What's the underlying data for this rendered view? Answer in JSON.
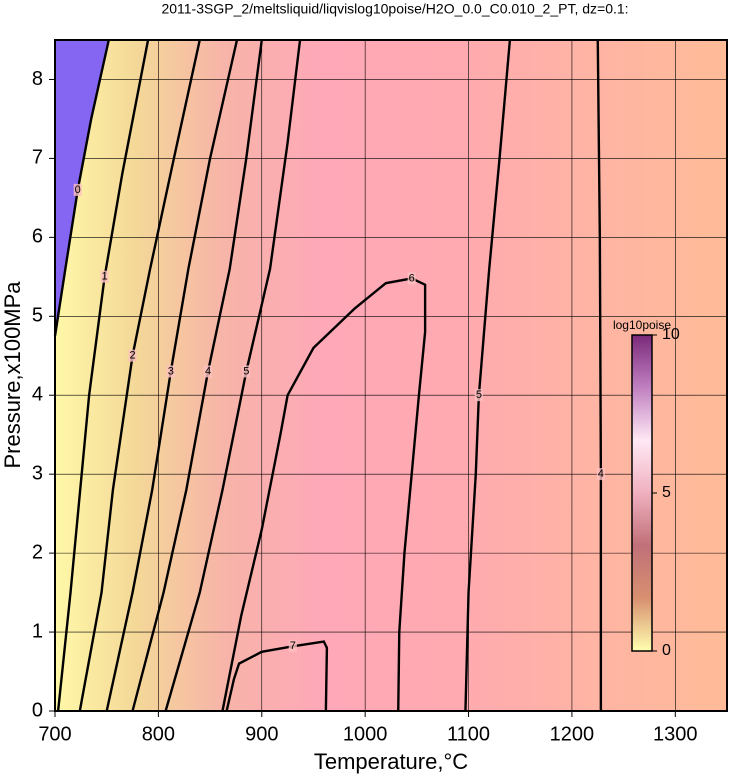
{
  "chart_data": {
    "type": "contour",
    "title": "2011-3SGP_2/meltsliquid/liqvislog10poise/H2O_0.0_C0.010_2_PT, dz=0.1:",
    "xlabel": "Temperature,°C",
    "ylabel": "Pressure,x100MPa",
    "xlim": [
      700,
      1350
    ],
    "ylim": [
      0,
      8.5
    ],
    "xticks": [
      700,
      800,
      900,
      1000,
      1100,
      1200,
      1300
    ],
    "yticks": [
      0,
      1,
      2,
      3,
      4,
      5,
      6,
      7,
      8
    ],
    "grid": true,
    "series": [
      {
        "name": "0",
        "color": "#000000",
        "fill": "#8466f2",
        "x": [
          700,
          710,
          722,
          735,
          752
        ],
        "y": [
          4.75,
          5.6,
          6.6,
          7.5,
          8.5
        ]
      },
      {
        "name": "1",
        "color": "#000000",
        "x": [
          703,
          715,
          733,
          748,
          765,
          790
        ],
        "y": [
          0,
          1.5,
          4,
          5.5,
          6.8,
          8.5
        ]
      },
      {
        "name": "2",
        "color": "#000000",
        "x": [
          724,
          745,
          756,
          775,
          792,
          815,
          840
        ],
        "y": [
          0,
          1.5,
          2.8,
          4.5,
          5.6,
          7,
          8.5
        ]
      },
      {
        "name": "3",
        "color": "#000000",
        "x": [
          750,
          775,
          794,
          812,
          829,
          850,
          876
        ],
        "y": [
          0,
          1.5,
          2.8,
          4.3,
          5.6,
          7,
          8.5
        ]
      },
      {
        "name": "4",
        "color": "#000000",
        "x": [
          775,
          805,
          827,
          848,
          869,
          885,
          900
        ],
        "y": [
          0,
          1.5,
          2.8,
          4.3,
          5.6,
          7,
          8.5
        ]
      },
      {
        "name": "5",
        "color": "#000000",
        "x": [
          807,
          840,
          862,
          885,
          908,
          925,
          937
        ],
        "y": [
          0,
          1.5,
          2.8,
          4.3,
          5.6,
          7.2,
          8.5
        ]
      },
      {
        "name": "6",
        "color": "#000000",
        "x": [
          862,
          880,
          900,
          918,
          925,
          950,
          990,
          1020,
          1045,
          1058,
          1058,
          1052,
          1045,
          1038,
          1033,
          1032
        ],
        "y": [
          0,
          1.2,
          2.3,
          3.5,
          4.0,
          4.6,
          5.1,
          5.42,
          5.48,
          5.4,
          4.8,
          4,
          3,
          2,
          1,
          0
        ]
      },
      {
        "name": "7",
        "color": "#000000",
        "x": [
          866,
          873,
          878,
          900,
          930,
          960,
          963,
          962
        ],
        "y": [
          0,
          0.4,
          0.6,
          0.75,
          0.82,
          0.88,
          0.8,
          0
        ]
      },
      {
        "name": "5",
        "color": "#000000",
        "x": [
          1140,
          1130,
          1120,
          1110,
          1107,
          1100,
          1097
        ],
        "y": [
          8.5,
          7,
          5.6,
          4,
          3,
          1.5,
          0
        ]
      },
      {
        "name": "4",
        "color": "#000000",
        "x": [
          1225,
          1227,
          1228,
          1228
        ],
        "y": [
          8.5,
          6,
          3,
          0
        ]
      }
    ],
    "colorbar": {
      "title": "log10poise",
      "lim": [
        0,
        10
      ],
      "ticks": [
        0,
        5,
        10
      ],
      "colors": [
        "#ffffb0",
        "#d89070",
        "#c07078",
        "#f0b0c0",
        "#ffe8f4",
        "#c080c0",
        "#7a2a7a"
      ]
    }
  }
}
